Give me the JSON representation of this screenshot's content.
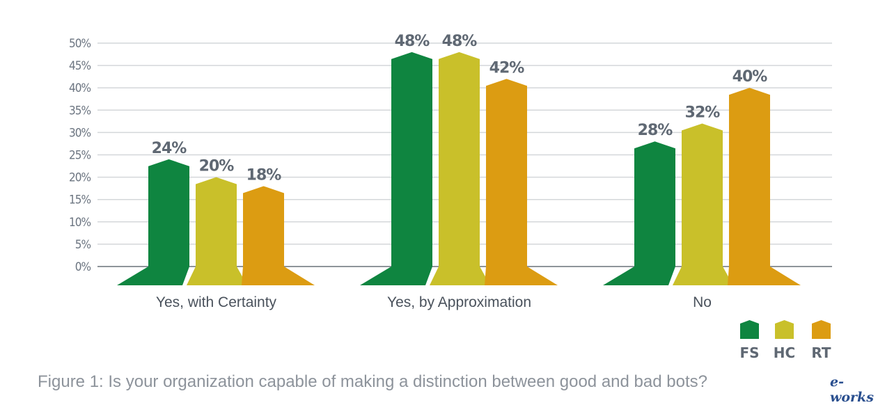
{
  "chart_data": {
    "type": "bar",
    "title": "",
    "xlabel": "",
    "ylabel": "",
    "categories": [
      "Yes, with Certainty",
      "Yes, by Approximation",
      "No"
    ],
    "series": [
      {
        "name": "FS",
        "color": "#0f8540",
        "values": [
          24,
          48,
          28
        ]
      },
      {
        "name": "HC",
        "color": "#c9c02a",
        "values": [
          20,
          48,
          32
        ]
      },
      {
        "name": "RT",
        "color": "#dc9c12",
        "values": [
          18,
          42,
          40
        ]
      }
    ],
    "data_labels": [
      [
        "24%",
        "48%",
        "28%"
      ],
      [
        "20%",
        "48%",
        "32%"
      ],
      [
        "18%",
        "42%",
        "40%"
      ]
    ],
    "ylim": [
      0,
      50
    ],
    "yticks": [
      "0%",
      "5%",
      "10%",
      "15%",
      "20%",
      "25%",
      "30%",
      "35%",
      "40%",
      "45%",
      "50%"
    ],
    "grid": true,
    "legend_position": "bottom-right"
  },
  "caption": "Figure 1: Is your organization capable of making a distinction between good and bad bots?",
  "watermark": "e-works"
}
